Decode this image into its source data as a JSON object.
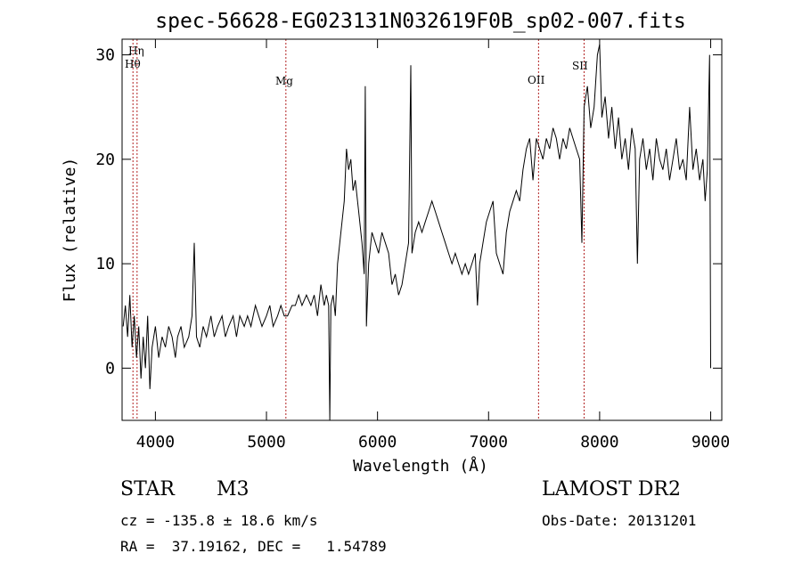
{
  "chart_data": {
    "type": "line",
    "title": "spec-56628-EG023131N032619F0B_sp02-007.fits",
    "xlabel": "Wavelength (Å)",
    "ylabel": "Flux (relative)",
    "xlim": [
      3700,
      9100
    ],
    "ylim": [
      -5,
      31.5
    ],
    "xticks": [
      4000,
      5000,
      6000,
      7000,
      8000,
      9000
    ],
    "yticks": [
      0,
      10,
      20,
      30
    ],
    "grid": false,
    "series": [
      {
        "points": [
          [
            3710,
            4
          ],
          [
            3730,
            6
          ],
          [
            3750,
            3
          ],
          [
            3770,
            7
          ],
          [
            3790,
            2
          ],
          [
            3810,
            5
          ],
          [
            3830,
            1
          ],
          [
            3850,
            4
          ],
          [
            3870,
            -1
          ],
          [
            3890,
            3
          ],
          [
            3910,
            0
          ],
          [
            3930,
            5
          ],
          [
            3950,
            -2
          ],
          [
            3970,
            2
          ],
          [
            4000,
            4
          ],
          [
            4030,
            1
          ],
          [
            4060,
            3
          ],
          [
            4090,
            2
          ],
          [
            4120,
            4
          ],
          [
            4150,
            3
          ],
          [
            4180,
            1
          ],
          [
            4200,
            3
          ],
          [
            4230,
            4
          ],
          [
            4260,
            2
          ],
          [
            4300,
            3
          ],
          [
            4330,
            5
          ],
          [
            4350,
            12
          ],
          [
            4370,
            3
          ],
          [
            4400,
            2
          ],
          [
            4430,
            4
          ],
          [
            4460,
            3
          ],
          [
            4500,
            5
          ],
          [
            4530,
            3
          ],
          [
            4560,
            4
          ],
          [
            4600,
            5
          ],
          [
            4630,
            3
          ],
          [
            4660,
            4
          ],
          [
            4700,
            5
          ],
          [
            4730,
            3
          ],
          [
            4760,
            5
          ],
          [
            4800,
            4
          ],
          [
            4830,
            5
          ],
          [
            4860,
            4
          ],
          [
            4900,
            6
          ],
          [
            4930,
            5
          ],
          [
            4960,
            4
          ],
          [
            5000,
            5
          ],
          [
            5030,
            6
          ],
          [
            5060,
            4
          ],
          [
            5100,
            5
          ],
          [
            5130,
            6
          ],
          [
            5160,
            5
          ],
          [
            5190,
            5
          ],
          [
            5230,
            6
          ],
          [
            5260,
            6
          ],
          [
            5290,
            7
          ],
          [
            5320,
            6
          ],
          [
            5360,
            7
          ],
          [
            5400,
            6
          ],
          [
            5430,
            7
          ],
          [
            5460,
            5
          ],
          [
            5490,
            8
          ],
          [
            5520,
            6
          ],
          [
            5540,
            7
          ],
          [
            5560,
            6
          ],
          [
            5570,
            -5
          ],
          [
            5580,
            6
          ],
          [
            5600,
            7
          ],
          [
            5620,
            5
          ],
          [
            5640,
            10
          ],
          [
            5660,
            12
          ],
          [
            5680,
            14
          ],
          [
            5700,
            16
          ],
          [
            5720,
            21
          ],
          [
            5740,
            19
          ],
          [
            5760,
            20
          ],
          [
            5780,
            17
          ],
          [
            5800,
            18
          ],
          [
            5830,
            15
          ],
          [
            5860,
            12
          ],
          [
            5880,
            9
          ],
          [
            5890,
            27
          ],
          [
            5900,
            4
          ],
          [
            5920,
            10
          ],
          [
            5950,
            13
          ],
          [
            5980,
            12
          ],
          [
            6010,
            11
          ],
          [
            6040,
            13
          ],
          [
            6070,
            12
          ],
          [
            6100,
            11
          ],
          [
            6130,
            8
          ],
          [
            6160,
            9
          ],
          [
            6190,
            7
          ],
          [
            6220,
            8
          ],
          [
            6250,
            10
          ],
          [
            6280,
            12
          ],
          [
            6300,
            29
          ],
          [
            6310,
            11
          ],
          [
            6340,
            13
          ],
          [
            6370,
            14
          ],
          [
            6400,
            13
          ],
          [
            6430,
            14
          ],
          [
            6460,
            15
          ],
          [
            6490,
            16
          ],
          [
            6520,
            15
          ],
          [
            6550,
            14
          ],
          [
            6580,
            13
          ],
          [
            6610,
            12
          ],
          [
            6640,
            11
          ],
          [
            6670,
            10
          ],
          [
            6700,
            11
          ],
          [
            6730,
            10
          ],
          [
            6760,
            9
          ],
          [
            6790,
            10
          ],
          [
            6820,
            9
          ],
          [
            6850,
            10
          ],
          [
            6880,
            11
          ],
          [
            6900,
            6
          ],
          [
            6920,
            10
          ],
          [
            6950,
            12
          ],
          [
            6980,
            14
          ],
          [
            7010,
            15
          ],
          [
            7040,
            16
          ],
          [
            7070,
            11
          ],
          [
            7100,
            10
          ],
          [
            7130,
            9
          ],
          [
            7160,
            13
          ],
          [
            7190,
            15
          ],
          [
            7220,
            16
          ],
          [
            7250,
            17
          ],
          [
            7280,
            16
          ],
          [
            7310,
            19
          ],
          [
            7340,
            21
          ],
          [
            7370,
            22
          ],
          [
            7400,
            18
          ],
          [
            7430,
            22
          ],
          [
            7460,
            21
          ],
          [
            7490,
            20
          ],
          [
            7520,
            22
          ],
          [
            7550,
            21
          ],
          [
            7580,
            23
          ],
          [
            7610,
            22
          ],
          [
            7640,
            20
          ],
          [
            7670,
            22
          ],
          [
            7700,
            21
          ],
          [
            7730,
            23
          ],
          [
            7760,
            22
          ],
          [
            7790,
            21
          ],
          [
            7820,
            20
          ],
          [
            7840,
            12
          ],
          [
            7860,
            25
          ],
          [
            7890,
            27
          ],
          [
            7920,
            23
          ],
          [
            7950,
            25
          ],
          [
            7980,
            30
          ],
          [
            8000,
            31
          ],
          [
            8020,
            24
          ],
          [
            8050,
            26
          ],
          [
            8080,
            22
          ],
          [
            8110,
            25
          ],
          [
            8140,
            21
          ],
          [
            8170,
            24
          ],
          [
            8200,
            20
          ],
          [
            8230,
            22
          ],
          [
            8260,
            19
          ],
          [
            8290,
            23
          ],
          [
            8320,
            21
          ],
          [
            8340,
            10
          ],
          [
            8360,
            20
          ],
          [
            8390,
            22
          ],
          [
            8420,
            19
          ],
          [
            8450,
            21
          ],
          [
            8480,
            18
          ],
          [
            8510,
            22
          ],
          [
            8540,
            20
          ],
          [
            8570,
            19
          ],
          [
            8600,
            21
          ],
          [
            8630,
            18
          ],
          [
            8660,
            20
          ],
          [
            8690,
            22
          ],
          [
            8720,
            19
          ],
          [
            8750,
            20
          ],
          [
            8780,
            18
          ],
          [
            8810,
            25
          ],
          [
            8840,
            19
          ],
          [
            8870,
            21
          ],
          [
            8900,
            18
          ],
          [
            8930,
            20
          ],
          [
            8950,
            16
          ],
          [
            8970,
            19
          ],
          [
            8990,
            30
          ],
          [
            9000,
            0
          ]
        ]
      }
    ],
    "lines": [
      {
        "label": "Hη",
        "x": 3835
      },
      {
        "label": "Hθ",
        "x": 3798
      },
      {
        "label": "Mg",
        "x": 5175
      },
      {
        "label": "OII",
        "x": 7450
      },
      {
        "label": "SII",
        "x": 7860
      }
    ],
    "line_color": "#b22222"
  },
  "info": {
    "object_class": "STAR",
    "subclass": "M3",
    "redshift": "cz = -135.8 ± 18.6 km/s",
    "coords": "RA =  37.19162, DEC =   1.54789",
    "survey": "LAMOST DR2",
    "obs_date": "Obs-Date: 20131201"
  }
}
